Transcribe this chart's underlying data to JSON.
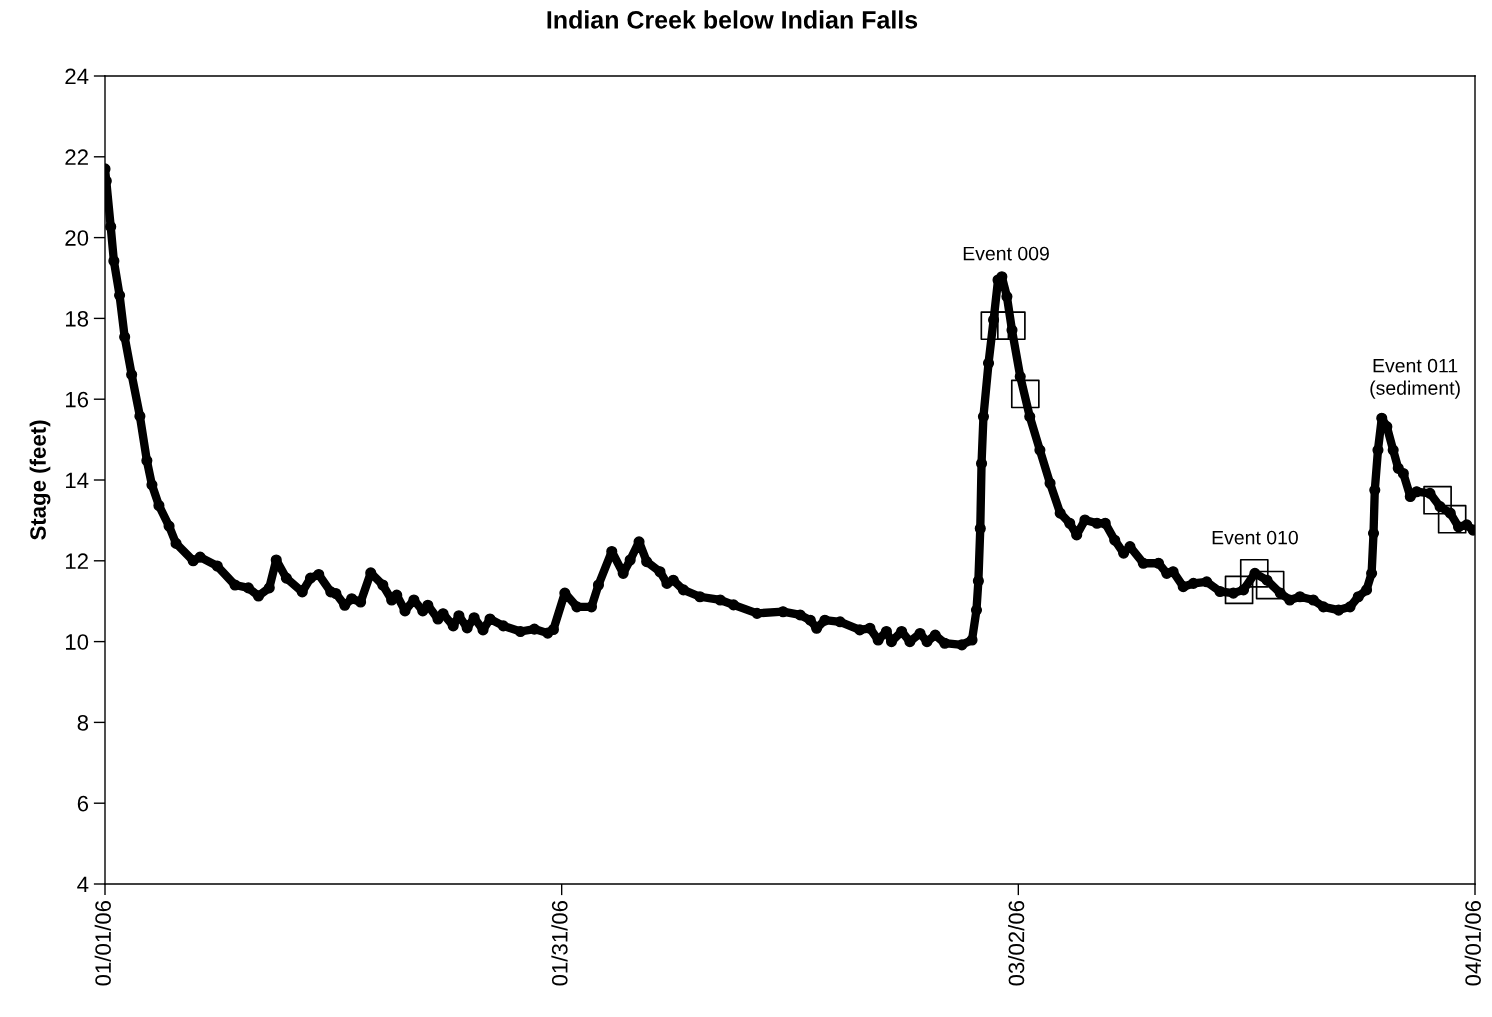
{
  "chart_data": {
    "type": "line",
    "title": "Indian Creek below Indian Falls",
    "ylabel": "Stage (feet)",
    "xlim": [
      "2006-01-01",
      "2006-04-01"
    ],
    "xticks": [
      {
        "value": "2006-01-01",
        "label": "01/01/06"
      },
      {
        "value": "2006-01-31",
        "label": "01/31/06"
      },
      {
        "value": "2006-03-02",
        "label": "03/02/06"
      },
      {
        "value": "2006-04-01",
        "label": "04/01/06"
      }
    ],
    "ylim": [
      4,
      24
    ],
    "yticks": [
      4,
      6,
      8,
      10,
      12,
      14,
      16,
      18,
      20,
      22,
      24
    ],
    "grid": false,
    "annotations": [
      {
        "text": "Event 009",
        "x": "2006-02-28T22:00",
        "y": 19.03
      },
      {
        "text": "Event 010",
        "x": "2006-03-17T13:00",
        "y": 11.69
      },
      {
        "text": "Event 011\n(sediment)",
        "x": "2006-03-25T21:00",
        "y": 15.53
      }
    ],
    "series": [
      {
        "marker": "circle",
        "line_style": "solid",
        "color": "#000000",
        "x": [
          "2006-01-01T00:00",
          "2006-01-01T02:00",
          "2006-01-01T09:00",
          "2006-01-01T14:00",
          "2006-01-01T23:00",
          "2006-01-02T07:00",
          "2006-01-02T18:00",
          "2006-01-03T07:00",
          "2006-01-03T18:00",
          "2006-01-04T02:00",
          "2006-01-04T13:00",
          "2006-01-05T05:00",
          "2006-01-05T16:00",
          "2006-01-06T19:00",
          "2006-01-07T06:00",
          "2006-01-08T09:00",
          "2006-01-09T13:00",
          "2006-01-10T10:00",
          "2006-01-11T02:00",
          "2006-01-11T19:00",
          "2006-01-12T06:00",
          "2006-01-12T22:00",
          "2006-01-13T23:00",
          "2006-01-14T12:00",
          "2006-01-15T01:00",
          "2006-01-15T20:00",
          "2006-01-16T04:00",
          "2006-01-16T18:00",
          "2006-01-17T05:00",
          "2006-01-17T19:00",
          "2006-01-18T11:00",
          "2006-01-19T06:00",
          "2006-01-19T20:00",
          "2006-01-20T04:00",
          "2006-01-20T17:00",
          "2006-01-21T07:00",
          "2006-01-21T21:00",
          "2006-01-22T05:00",
          "2006-01-22T21:00",
          "2006-01-23T05:00",
          "2006-01-23T21:00",
          "2006-01-24T06:00",
          "2006-01-24T19:00",
          "2006-01-25T06:00",
          "2006-01-25T20:00",
          "2006-01-26T07:00",
          "2006-01-27T04:00",
          "2006-01-28T07:00",
          "2006-01-29T05:00",
          "2006-01-30T02:00",
          "2006-01-30T11:00",
          "2006-01-31T05:00",
          "2006-02-01T00:00",
          "2006-02-01T23:00",
          "2006-02-02T10:00",
          "2006-02-03T07:00",
          "2006-02-04T01:00",
          "2006-02-04T12:00",
          "2006-02-05T02:00",
          "2006-02-05T14:00",
          "2006-02-06T11:00",
          "2006-02-06T22:00",
          "2006-02-07T08:00",
          "2006-02-08T00:00",
          "2006-02-09T02:00",
          "2006-02-10T10:00",
          "2006-02-11T07:00",
          "2006-02-12T20:00",
          "2006-02-14T13:00",
          "2006-02-15T16:00",
          "2006-02-16T08:00",
          "2006-02-16T18:00",
          "2006-02-17T07:00",
          "2006-02-18T07:00",
          "2006-02-19T14:00",
          "2006-02-20T06:00",
          "2006-02-20T19:00",
          "2006-02-21T08:00",
          "2006-02-21T16:00",
          "2006-02-22T08:00",
          "2006-02-22T21:00",
          "2006-02-23T13:00",
          "2006-02-24T00:00",
          "2006-02-24T13:00",
          "2006-02-25T04:00",
          "2006-02-26T07:00",
          "2006-02-26T23:00",
          "2006-02-27T06:00",
          "2006-02-27T09:00",
          "2006-02-27T12:00",
          "2006-02-27T14:00",
          "2006-02-27T17:00",
          "2006-02-28T01:00",
          "2006-02-28T09:00",
          "2006-02-28T16:00",
          "2006-02-28T22:00",
          "2006-03-01T06:00",
          "2006-03-01T14:00",
          "2006-03-02T03:00",
          "2006-03-02T18:00",
          "2006-03-03T10:00",
          "2006-03-04T02:00",
          "2006-03-04T18:00",
          "2006-03-05T09:00",
          "2006-03-05T20:00",
          "2006-03-06T09:00",
          "2006-03-07T04:00",
          "2006-03-07T17:00",
          "2006-03-08T08:00",
          "2006-03-08T22:00",
          "2006-03-09T08:00",
          "2006-03-10T05:00",
          "2006-03-11T05:00",
          "2006-03-11T18:00",
          "2006-03-12T04:00",
          "2006-03-12T20:00",
          "2006-03-13T12:00",
          "2006-03-14T09:00",
          "2006-03-15T06:00",
          "2006-03-16T03:00",
          "2006-03-16T19:00",
          "2006-03-17T13:00",
          "2006-03-18T08:00",
          "2006-03-19T05:00",
          "2006-03-19T20:00",
          "2006-03-20T12:00",
          "2006-03-21T09:00",
          "2006-03-22T01:00",
          "2006-03-23T01:00",
          "2006-03-23T19:00",
          "2006-03-24T08:00",
          "2006-03-24T21:00",
          "2006-03-25T05:00",
          "2006-03-25T08:00",
          "2006-03-25T10:00",
          "2006-03-25T15:00",
          "2006-03-25T21:00",
          "2006-03-26T05:00",
          "2006-03-26T15:00",
          "2006-03-26T23:00",
          "2006-03-27T07:00",
          "2006-03-27T18:00",
          "2006-03-28T04:00",
          "2006-03-29T01:00",
          "2006-03-29T17:00",
          "2006-03-30T09:00",
          "2006-03-30T22:00",
          "2006-03-31T11:00",
          "2006-03-31T21:00"
        ],
        "values": [
          21.7,
          21.4,
          20.27,
          19.42,
          18.57,
          17.54,
          16.61,
          15.58,
          14.48,
          13.88,
          13.37,
          12.86,
          12.43,
          12.0,
          12.09,
          11.87,
          11.4,
          11.33,
          11.13,
          11.33,
          12.02,
          11.57,
          11.23,
          11.57,
          11.66,
          11.23,
          11.19,
          10.9,
          11.06,
          10.98,
          11.7,
          11.4,
          11.03,
          11.15,
          10.76,
          11.03,
          10.76,
          10.9,
          10.56,
          10.69,
          10.39,
          10.64,
          10.34,
          10.59,
          10.29,
          10.56,
          10.39,
          10.25,
          10.31,
          10.21,
          10.3,
          11.2,
          10.86,
          10.86,
          11.4,
          12.23,
          11.69,
          12.02,
          12.47,
          11.98,
          11.73,
          11.44,
          11.52,
          11.28,
          11.11,
          11.03,
          10.91,
          10.7,
          10.74,
          10.66,
          10.53,
          10.33,
          10.53,
          10.49,
          10.29,
          10.33,
          10.04,
          10.25,
          10.0,
          10.25,
          10.0,
          10.2,
          10.0,
          10.16,
          9.96,
          9.92,
          10.04,
          10.78,
          11.5,
          12.8,
          14.41,
          15.57,
          16.89,
          17.96,
          18.95,
          19.03,
          18.54,
          17.71,
          16.56,
          15.57,
          14.74,
          13.92,
          13.18,
          12.93,
          12.64,
          13.01,
          12.93,
          12.93,
          12.51,
          12.19,
          12.35,
          11.94,
          11.94,
          11.69,
          11.73,
          11.36,
          11.44,
          11.48,
          11.24,
          11.2,
          11.28,
          11.69,
          11.52,
          11.2,
          11.03,
          11.11,
          11.03,
          10.86,
          10.78,
          10.86,
          11.11,
          11.28,
          11.69,
          12.68,
          13.75,
          14.74,
          15.53,
          15.32,
          14.74,
          14.29,
          14.16,
          13.59,
          13.71,
          13.67,
          13.34,
          13.18,
          12.84,
          12.89,
          12.76
        ]
      },
      {
        "type": "scatter",
        "marker": "square",
        "color": "#000000",
        "x": [
          "2006-02-28T11:00",
          "2006-03-01T13:00",
          "2006-03-02T11:00",
          "2006-03-16T12:00",
          "2006-03-17T12:00",
          "2006-03-18T13:00",
          "2006-03-29T13:00",
          "2006-03-30T12:00"
        ],
        "values": [
          17.82,
          17.82,
          16.13,
          11.28,
          11.69,
          11.4,
          13.5,
          13.03
        ]
      }
    ]
  }
}
